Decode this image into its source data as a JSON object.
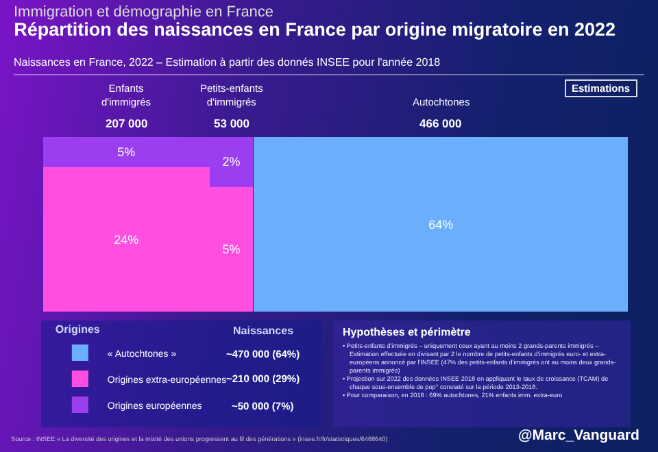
{
  "chart_data": {
    "type": "other",
    "title": "Répartition des naissances en France par origine migratoire en 2022",
    "subtitle": "Naissances en France, 2022 – Estimation à partir des donnés INSEE pour l'année 2018",
    "categories": [
      "Enfants d'immigrés",
      "Petits-enfants d'immigrés",
      "Autochtones"
    ],
    "values": [
      207000,
      53000,
      466000
    ],
    "value_labels": [
      "207 000",
      "53 000",
      "466 000"
    ],
    "series": [
      {
        "name": "« Autochtones »",
        "color": "#6aaefc",
        "values": [
          null,
          null,
          64
        ],
        "value_labels": [
          null,
          null,
          "64%"
        ]
      },
      {
        "name": "Origines extra-européennes",
        "color": "#ff4ee0",
        "values": [
          24,
          5,
          null
        ],
        "value_labels": [
          "24%",
          "5%",
          null
        ]
      },
      {
        "name": "Origines européennes",
        "color": "#9a3ef0",
        "values": [
          5,
          2,
          null
        ],
        "value_labels": [
          "5%",
          "2%",
          null
        ]
      }
    ],
    "legend": "bottom left",
    "legend_title": "Origines",
    "annotations": [
      "Immigration et démographie en France",
      "Estimations",
      "Naissances",
      "~470 000 (64%)",
      "~210 000 (29%)",
      "~50 000 (7%)",
      "Hypothèses et périmètre",
      "• Petits-enfants d'immigrés – uniquement ceux ayant au moins 2 grands-parents immigrés – Estimation effectuée en divisant par 2 le nombre de petits-enfants d'immigrés euro- et extra-européens annoncé par l'INSEE (47% des petits-enfants d'immigrés ont au moins deux grands-parents immigrés)",
      "• Projection sur 2022 des données INSEE 2018 en appliquant le taux de croissance (TCAM) de chaque sous-ensemble de pop° constaté sur la période 2013-2018.",
      "• Pour comparaison, en 2018 : 69% autochtones, 21% enfants imm. extra-euro",
      "Source : INSEE « La diversité des origines et la mixité des unions progressent au fil des générations » (insee.fr/fr/statistiques/6468640)",
      "@Marc_Vanguard"
    ]
  }
}
